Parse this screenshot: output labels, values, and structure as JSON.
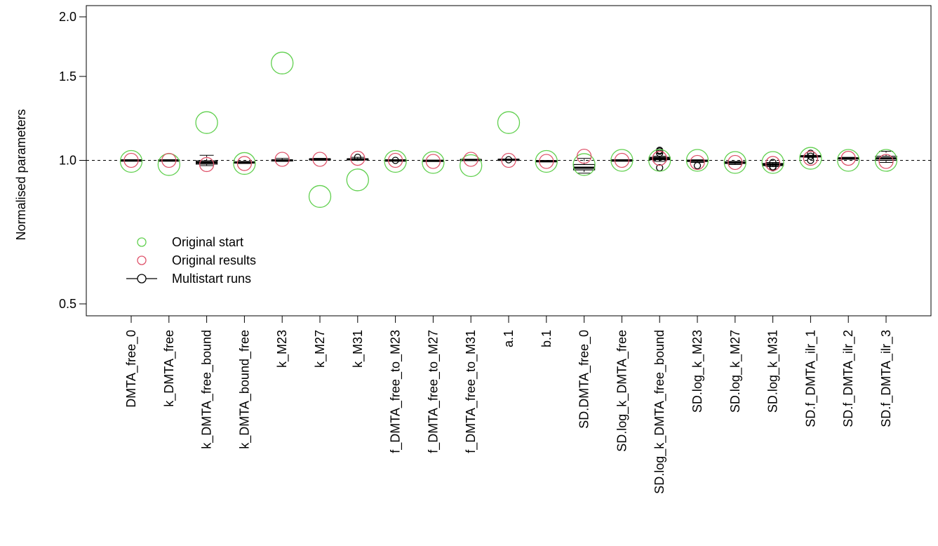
{
  "chart_data": {
    "type": "boxplot",
    "ylabel": "Normalised parameters",
    "y_scale": "log",
    "ylim": [
      0.45,
      2.1
    ],
    "y_ticks": [
      0.5,
      1.0,
      1.5,
      2.0
    ],
    "y_tick_labels": [
      "0.5",
      "1.0",
      "1.5",
      "2.0"
    ],
    "reference_line": 1.0,
    "legend": {
      "position": "bottom-left",
      "entries": [
        {
          "label": "Original start",
          "color": "#61D04F",
          "symbol": "circle"
        },
        {
          "label": "Original results",
          "color": "#DF536B",
          "symbol": "circle"
        },
        {
          "label": "Multistart runs",
          "color": "#000000",
          "symbol": "boxplot"
        }
      ]
    },
    "categories": [
      "DMTA_free_0",
      "k_DMTA_free",
      "k_DMTA_free_bound",
      "k_DMTA_bound_free",
      "k_M23",
      "k_M27",
      "k_M31",
      "f_DMTA_free_to_M23",
      "f_DMTA_free_to_M27",
      "f_DMTA_free_to_M31",
      "a.1",
      "b.1",
      "SD.DMTA_free_0",
      "SD.log_k_DMTA_free",
      "SD.log_k_DMTA_free_bound",
      "SD.log_k_M23",
      "SD.log_k_M27",
      "SD.log_k_M31",
      "SD.f_DMTA_ilr_1",
      "SD.f_DMTA_ilr_2",
      "SD.f_DMTA_ilr_3"
    ],
    "series": [
      {
        "name": "Original start",
        "values": [
          0.995,
          0.98,
          1.2,
          0.985,
          1.6,
          0.84,
          0.91,
          0.995,
          0.99,
          0.975,
          1.2,
          0.995,
          0.98,
          1.0,
          1.0,
          1.0,
          0.99,
          0.99,
          1.01,
          1.0,
          1.0
        ]
      },
      {
        "name": "Original results",
        "values": [
          1.0,
          1.0,
          0.98,
          0.985,
          1.005,
          1.005,
          1.01,
          1.0,
          0.995,
          1.005,
          1.0,
          0.995,
          1.02,
          1.0,
          1.01,
          0.99,
          0.99,
          0.985,
          1.01,
          1.01,
          0.995
        ]
      },
      {
        "name": "Multistart runs",
        "boxes": [
          {
            "min": 0.998,
            "q1": 0.999,
            "median": 1.0,
            "q3": 1.001,
            "max": 1.002,
            "outliers": []
          },
          {
            "min": 0.997,
            "q1": 0.999,
            "median": 1.0,
            "q3": 1.001,
            "max": 1.002,
            "outliers": []
          },
          {
            "min": 0.975,
            "q1": 0.982,
            "median": 0.99,
            "q3": 0.998,
            "max": 1.025,
            "outliers": []
          },
          {
            "min": 0.985,
            "q1": 0.988,
            "median": 0.99,
            "q3": 0.993,
            "max": 0.995,
            "outliers": []
          },
          {
            "min": 0.995,
            "q1": 0.998,
            "median": 1.0,
            "q3": 1.002,
            "max": 1.01,
            "outliers": []
          },
          {
            "min": 1.0,
            "q1": 1.003,
            "median": 1.005,
            "q3": 1.007,
            "max": 1.01,
            "outliers": []
          },
          {
            "min": 1.0,
            "q1": 1.002,
            "median": 1.005,
            "q3": 1.007,
            "max": 1.015,
            "outliers": [
              1.015
            ]
          },
          {
            "min": 0.997,
            "q1": 0.998,
            "median": 1.0,
            "q3": 1.001,
            "max": 1.002,
            "outliers": [
              1.0
            ]
          },
          {
            "min": 0.995,
            "q1": 0.997,
            "median": 0.998,
            "q3": 1.0,
            "max": 1.001,
            "outliers": []
          },
          {
            "min": 1.0,
            "q1": 1.001,
            "median": 1.002,
            "q3": 1.004,
            "max": 1.005,
            "outliers": []
          },
          {
            "min": 1.0,
            "q1": 1.002,
            "median": 1.003,
            "q3": 1.005,
            "max": 1.006,
            "outliers": [
              1.003
            ]
          },
          {
            "min": 0.993,
            "q1": 0.995,
            "median": 0.996,
            "q3": 0.998,
            "max": 0.999,
            "outliers": []
          },
          {
            "min": 0.94,
            "q1": 0.955,
            "median": 0.965,
            "q3": 0.98,
            "max": 1.01,
            "outliers": []
          },
          {
            "min": 0.997,
            "q1": 0.998,
            "median": 1.0,
            "q3": 1.001,
            "max": 1.002,
            "outliers": []
          },
          {
            "min": 0.995,
            "q1": 1.003,
            "median": 1.01,
            "q3": 1.015,
            "max": 1.02,
            "outliers": [
              0.965,
              1.035,
              1.045,
              1.05
            ]
          },
          {
            "min": 0.99,
            "q1": 0.995,
            "median": 0.998,
            "q3": 1.001,
            "max": 1.003,
            "outliers": [
              0.975
            ]
          },
          {
            "min": 0.98,
            "q1": 0.985,
            "median": 0.99,
            "q3": 0.993,
            "max": 0.995,
            "outliers": []
          },
          {
            "min": 0.97,
            "q1": 0.975,
            "median": 0.98,
            "q3": 0.985,
            "max": 0.99,
            "outliers": [
              0.965,
              0.97,
              0.99
            ]
          },
          {
            "min": 1.015,
            "q1": 1.018,
            "median": 1.02,
            "q3": 1.022,
            "max": 1.025,
            "outliers": [
              1.0,
              1.02,
              1.035
            ]
          },
          {
            "min": 1.005,
            "q1": 1.008,
            "median": 1.01,
            "q3": 1.012,
            "max": 1.015,
            "outliers": []
          },
          {
            "min": 0.99,
            "q1": 1.0,
            "median": 1.01,
            "q3": 1.02,
            "max": 1.045,
            "outliers": []
          }
        ]
      }
    ]
  }
}
